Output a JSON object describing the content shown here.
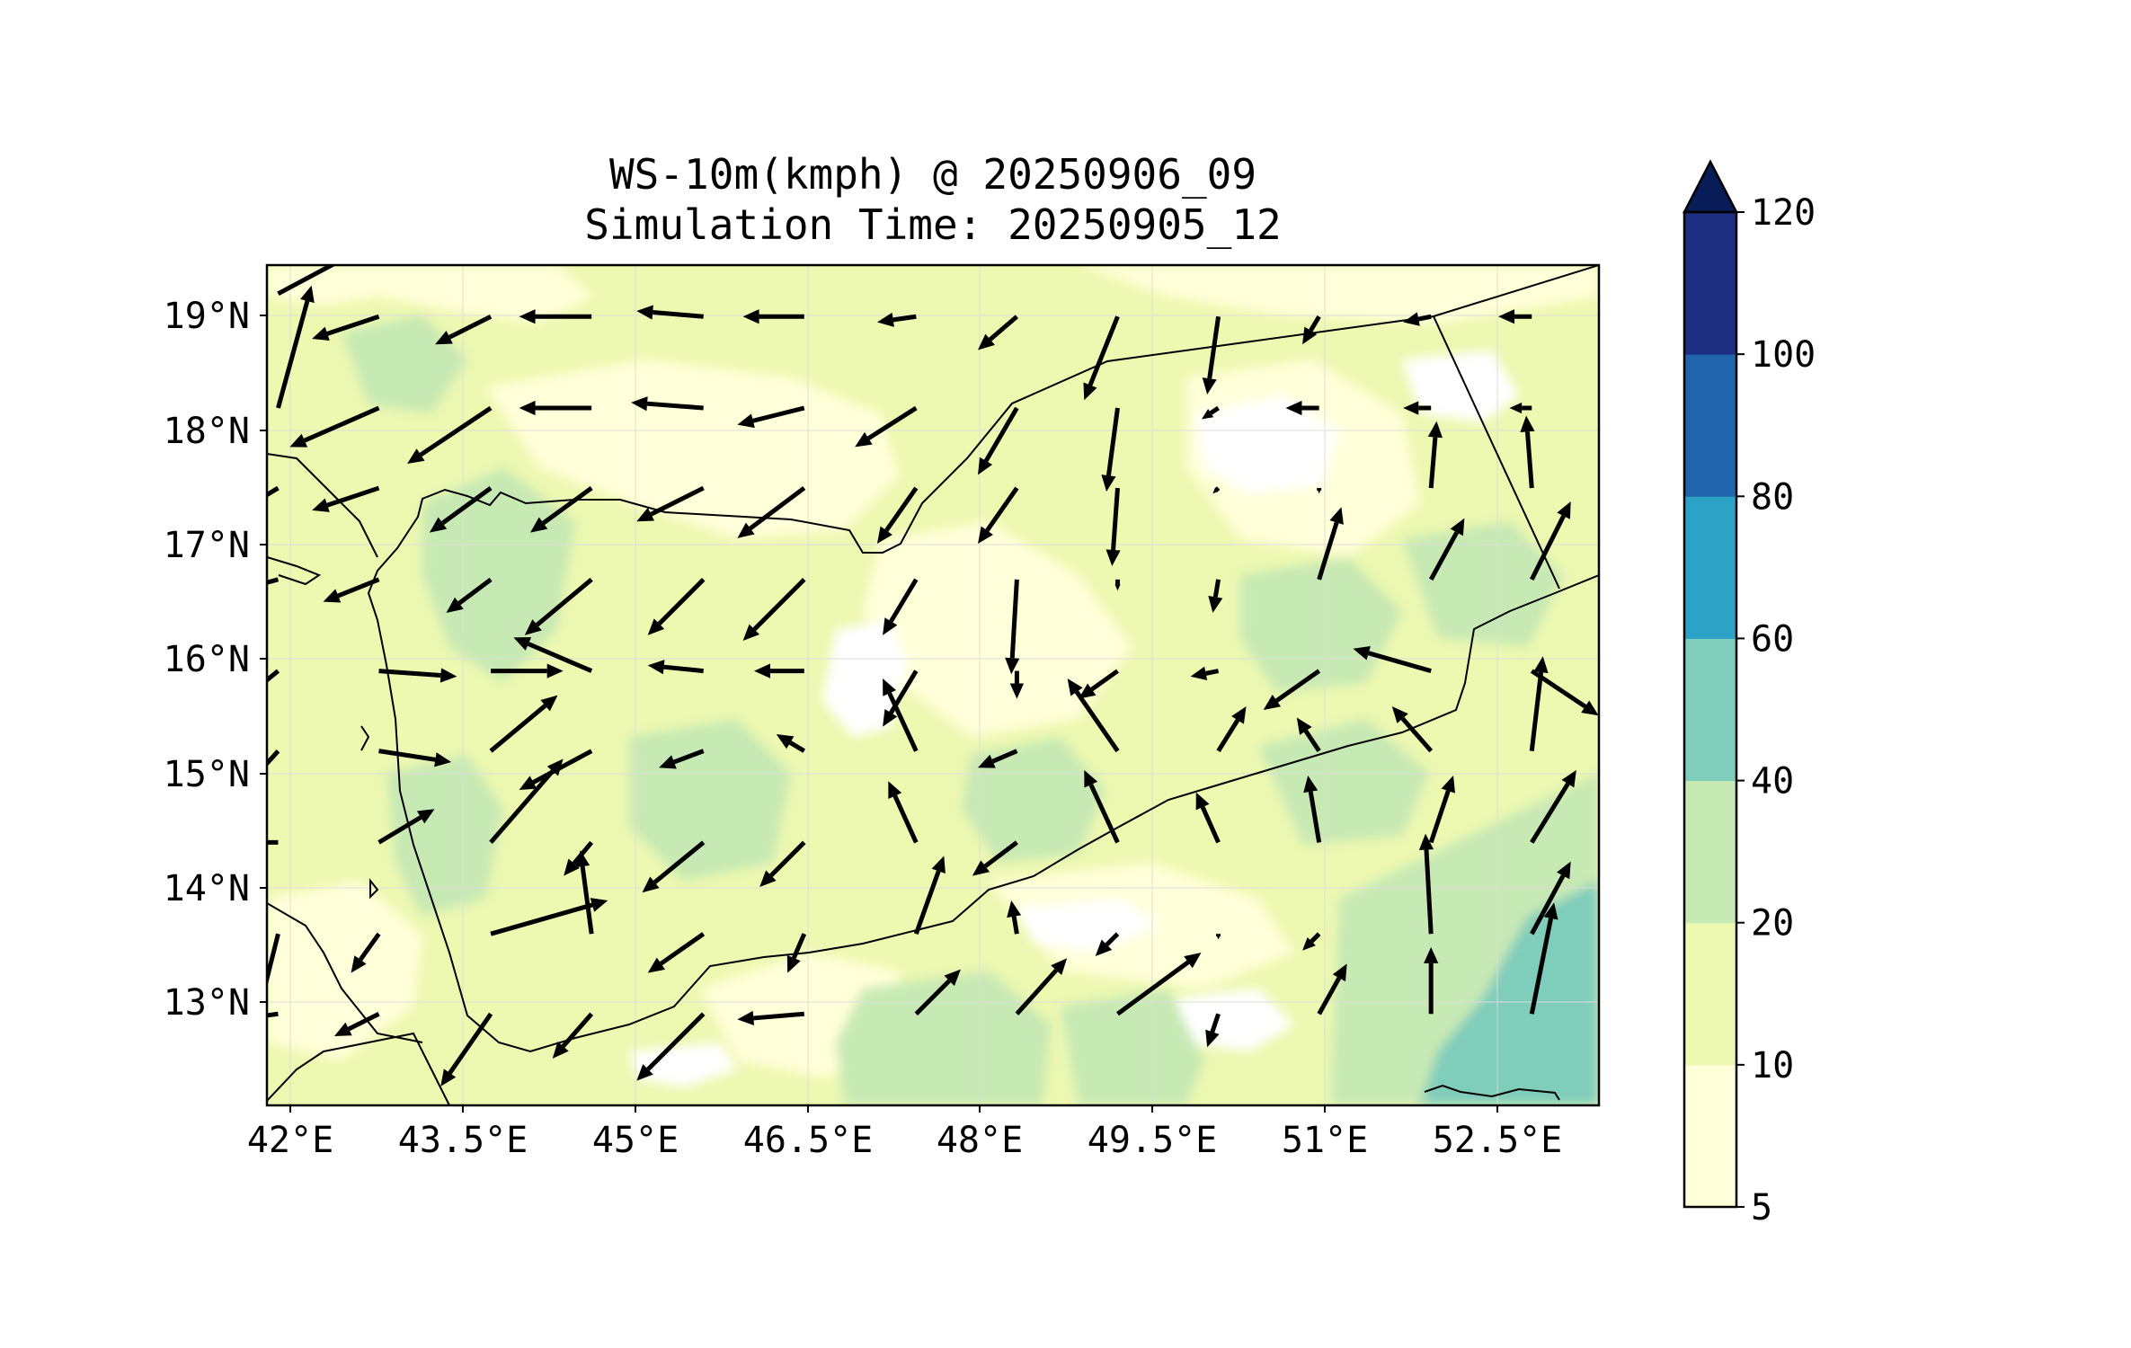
{
  "title": {
    "line1": "WS-10m(kmph) @ 20250906_09",
    "line2": "Simulation Time: 20250905_12"
  },
  "map": {
    "lon_range": [
      41.9,
      53.8
    ],
    "lat_range": [
      12.1,
      19.45
    ],
    "x_ticks": [
      {
        "lon": 42.0,
        "label": "42°E"
      },
      {
        "lon": 43.5,
        "label": "43.5°E"
      },
      {
        "lon": 45.0,
        "label": "45°E"
      },
      {
        "lon": 46.5,
        "label": "46.5°E"
      },
      {
        "lon": 48.0,
        "label": "48°E"
      },
      {
        "lon": 49.5,
        "label": "49.5°E"
      },
      {
        "lon": 51.0,
        "label": "51°E"
      },
      {
        "lon": 52.5,
        "label": "52.5°E"
      }
    ],
    "y_ticks": [
      {
        "lat": 13,
        "label": "13°N"
      },
      {
        "lat": 14,
        "label": "14°N"
      },
      {
        "lat": 15,
        "label": "15°N"
      },
      {
        "lat": 16,
        "label": "16°N"
      },
      {
        "lat": 17,
        "label": "17°N"
      },
      {
        "lat": 18,
        "label": "18°N"
      },
      {
        "lat": 19,
        "label": "19°N"
      }
    ]
  },
  "colorbar": {
    "extend": "max",
    "levels": [
      {
        "value": 5,
        "label": "5",
        "color": "#ffffd9"
      },
      {
        "value": 10,
        "label": "10",
        "color": "#edf8b1"
      },
      {
        "value": 20,
        "label": "20",
        "color": "#c7e9b4"
      },
      {
        "value": 40,
        "label": "40",
        "color": "#7fcdbb"
      },
      {
        "value": 60,
        "label": "60",
        "color": "#2ca2c6"
      },
      {
        "value": 80,
        "label": "80",
        "color": "#2166ac"
      },
      {
        "value": 100,
        "label": "100",
        "color": "#1d2f80"
      },
      {
        "value": 120,
        "label": "120",
        "color": "#081d58"
      }
    ],
    "extend_color": "#081d58"
  },
  "wind_vectors": [
    [
      42.0,
      19.2,
      15,
      8
    ],
    [
      42.9,
      19.0,
      -12,
      -4
    ],
    [
      43.9,
      19.0,
      -10,
      -5
    ],
    [
      44.8,
      19.0,
      -13,
      0
    ],
    [
      45.8,
      19.0,
      -12,
      1
    ],
    [
      46.7,
      19.0,
      -11,
      0
    ],
    [
      47.7,
      19.0,
      -7,
      -1
    ],
    [
      48.6,
      19.0,
      -7,
      -6
    ],
    [
      49.5,
      19.0,
      -6,
      -15
    ],
    [
      50.4,
      19.0,
      -2,
      -14
    ],
    [
      51.3,
      19.0,
      -3,
      -5
    ],
    [
      52.3,
      19.0,
      -5,
      -1
    ],
    [
      53.2,
      19.0,
      -6,
      0
    ],
    [
      42.0,
      18.2,
      6,
      22
    ],
    [
      42.9,
      18.2,
      -16,
      -7
    ],
    [
      43.9,
      18.2,
      -15,
      -10
    ],
    [
      44.8,
      18.2,
      -13,
      0
    ],
    [
      45.8,
      18.2,
      -13,
      1
    ],
    [
      46.7,
      18.2,
      -12,
      -3
    ],
    [
      47.7,
      18.2,
      -11,
      -7
    ],
    [
      48.6,
      18.2,
      -7,
      -12
    ],
    [
      49.5,
      18.2,
      -2,
      -15
    ],
    [
      50.4,
      18.2,
      -3,
      -2
    ],
    [
      51.3,
      18.2,
      -6,
      0
    ],
    [
      52.3,
      18.2,
      -5,
      0
    ],
    [
      53.2,
      18.2,
      -4,
      0
    ],
    [
      42.0,
      17.5,
      -20,
      -12
    ],
    [
      42.9,
      17.5,
      -12,
      -4
    ],
    [
      43.9,
      17.5,
      -11,
      -8
    ],
    [
      44.8,
      17.5,
      -11,
      -8
    ],
    [
      45.8,
      17.5,
      -12,
      -6
    ],
    [
      46.7,
      17.5,
      -12,
      -9
    ],
    [
      47.7,
      17.5,
      -7,
      -10
    ],
    [
      48.6,
      17.5,
      -7,
      -10
    ],
    [
      49.5,
      17.5,
      -1,
      -14
    ],
    [
      50.4,
      17.5,
      -1,
      -1
    ],
    [
      51.3,
      17.5,
      0,
      -1
    ],
    [
      52.3,
      17.5,
      1,
      12
    ],
    [
      53.2,
      17.5,
      -1,
      13
    ],
    [
      42.0,
      16.7,
      -15,
      -4
    ],
    [
      42.9,
      16.7,
      -10,
      -4
    ],
    [
      43.9,
      16.7,
      -8,
      -6
    ],
    [
      44.8,
      16.7,
      -12,
      -10
    ],
    [
      45.8,
      16.7,
      -10,
      -10
    ],
    [
      46.7,
      16.7,
      -11,
      -11
    ],
    [
      47.7,
      16.7,
      -6,
      -10
    ],
    [
      48.6,
      16.7,
      -1,
      -17
    ],
    [
      49.5,
      16.7,
      0,
      -2
    ],
    [
      50.4,
      16.7,
      -1,
      -6
    ],
    [
      51.3,
      16.7,
      4,
      13
    ],
    [
      52.3,
      16.7,
      6,
      11
    ],
    [
      53.2,
      16.7,
      7,
      14
    ],
    [
      42.0,
      15.9,
      -11,
      -9
    ],
    [
      42.9,
      15.9,
      14,
      -1
    ],
    [
      43.9,
      15.9,
      13,
      0
    ],
    [
      44.8,
      15.9,
      -14,
      6
    ],
    [
      45.8,
      15.9,
      -10,
      1
    ],
    [
      46.7,
      15.9,
      -9,
      0
    ],
    [
      47.7,
      15.9,
      -6,
      -10
    ],
    [
      48.6,
      15.9,
      0,
      -5
    ],
    [
      49.5,
      15.9,
      -7,
      -5
    ],
    [
      50.4,
      15.9,
      -5,
      -1
    ],
    [
      51.3,
      15.9,
      -10,
      -7
    ],
    [
      52.3,
      15.9,
      -14,
      4
    ],
    [
      53.2,
      15.9,
      12,
      -8
    ],
    [
      42.0,
      15.2,
      -9,
      -10
    ],
    [
      42.9,
      15.2,
      13,
      -2
    ],
    [
      43.9,
      15.2,
      12,
      10
    ],
    [
      44.8,
      15.2,
      -13,
      -7
    ],
    [
      45.8,
      15.2,
      -8,
      -3
    ],
    [
      46.7,
      15.2,
      -5,
      3
    ],
    [
      47.7,
      15.2,
      -6,
      13
    ],
    [
      48.6,
      15.2,
      -7,
      -3
    ],
    [
      49.5,
      15.2,
      -9,
      13
    ],
    [
      50.4,
      15.2,
      5,
      8
    ],
    [
      51.3,
      15.2,
      -4,
      6
    ],
    [
      52.3,
      15.2,
      -7,
      8
    ],
    [
      53.2,
      15.2,
      2,
      17
    ],
    [
      42.0,
      14.4,
      -15,
      0
    ],
    [
      42.9,
      14.4,
      10,
      6
    ],
    [
      43.9,
      14.4,
      13,
      15
    ],
    [
      44.8,
      14.4,
      -5,
      -6
    ],
    [
      45.8,
      14.4,
      -11,
      -9
    ],
    [
      46.7,
      14.4,
      -8,
      -8
    ],
    [
      47.7,
      14.4,
      -5,
      11
    ],
    [
      48.6,
      14.4,
      -8,
      -6
    ],
    [
      49.5,
      14.4,
      -6,
      13
    ],
    [
      50.4,
      14.4,
      -4,
      9
    ],
    [
      51.3,
      14.4,
      -2,
      12
    ],
    [
      52.3,
      14.4,
      4,
      12
    ],
    [
      53.2,
      14.4,
      8,
      13
    ],
    [
      42.0,
      13.6,
      -4,
      -16
    ],
    [
      42.9,
      13.6,
      -5,
      -7
    ],
    [
      43.9,
      13.6,
      21,
      6
    ],
    [
      44.8,
      13.6,
      -2,
      15
    ],
    [
      45.8,
      13.6,
      -10,
      -7
    ],
    [
      46.7,
      13.6,
      -3,
      -7
    ],
    [
      47.7,
      13.6,
      5,
      14
    ],
    [
      48.6,
      13.6,
      -1,
      6
    ],
    [
      49.5,
      13.6,
      -4,
      -4
    ],
    [
      50.4,
      13.6,
      0,
      -1
    ],
    [
      51.3,
      13.6,
      -3,
      -3
    ],
    [
      52.3,
      13.6,
      -1,
      18
    ],
    [
      53.2,
      13.6,
      7,
      13
    ],
    [
      42.0,
      12.9,
      -15,
      -2
    ],
    [
      42.9,
      12.9,
      -8,
      -4
    ],
    [
      43.9,
      12.9,
      -9,
      -13
    ],
    [
      44.8,
      12.9,
      -7,
      -8
    ],
    [
      45.8,
      12.9,
      -12,
      -12
    ],
    [
      46.7,
      12.9,
      -12,
      -1
    ],
    [
      47.7,
      12.9,
      8,
      8
    ],
    [
      48.6,
      12.9,
      9,
      10
    ],
    [
      49.5,
      12.9,
      15,
      11
    ],
    [
      50.4,
      12.9,
      -2,
      -6
    ],
    [
      51.3,
      12.9,
      5,
      9
    ],
    [
      52.3,
      12.9,
      0,
      12
    ],
    [
      53.2,
      12.9,
      4,
      20
    ]
  ]
}
